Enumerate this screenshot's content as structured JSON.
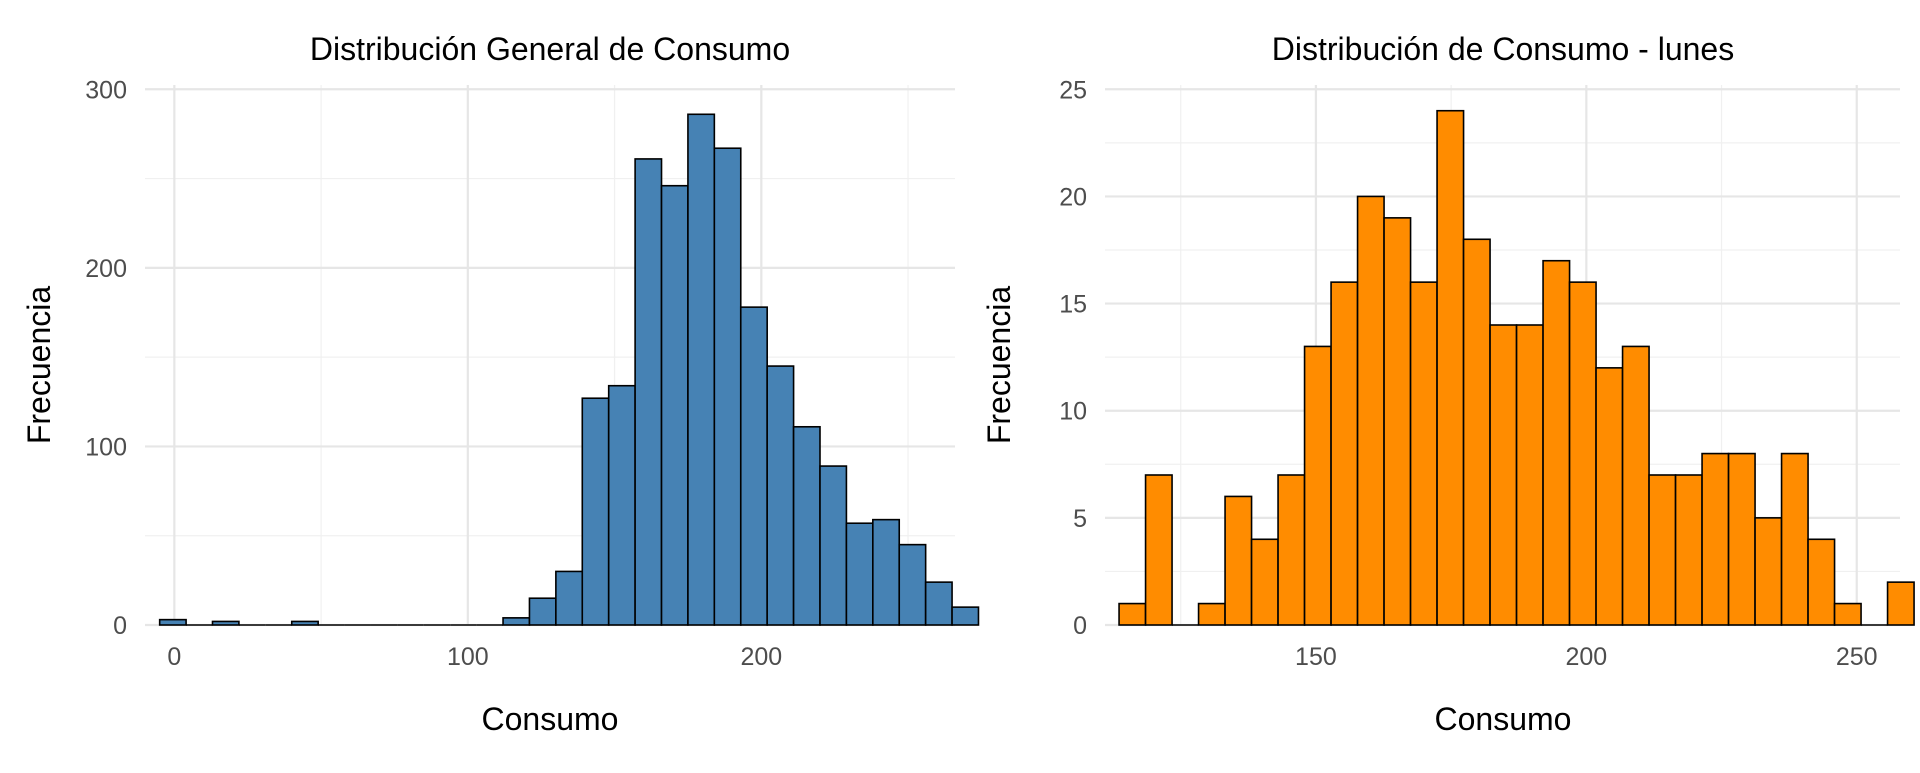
{
  "chart_data": [
    {
      "type": "histogram",
      "title": "Distribución General de Consumo",
      "xlabel": "Consumo",
      "ylabel": "Frecuencia",
      "xlim": [
        -10,
        266
      ],
      "ylim": [
        0,
        300
      ],
      "x_ticks": [
        0,
        100,
        200
      ],
      "y_ticks": [
        0,
        100,
        200,
        300
      ],
      "bin_width": 9,
      "bin_start": -5,
      "values": [
        3,
        0,
        2,
        0,
        0,
        2,
        0,
        0,
        0,
        0,
        0,
        0,
        0,
        4,
        15,
        30,
        127,
        134,
        261,
        246,
        286,
        267,
        178,
        145,
        111,
        89,
        57,
        59,
        45,
        24,
        10
      ],
      "fill_color": "#4682B4",
      "edge_color": "#000000",
      "grid": true
    },
    {
      "type": "histogram",
      "title": "Distribución de Consumo - lunes",
      "xlabel": "Consumo",
      "ylabel": "Frecuencia",
      "xlim": [
        111,
        258
      ],
      "ylim": [
        0,
        25
      ],
      "x_ticks": [
        150,
        200,
        250
      ],
      "y_ticks": [
        0,
        5,
        10,
        15,
        20,
        25
      ],
      "bin_width": 4.9,
      "bin_start": 113.6,
      "values": [
        1,
        7,
        0,
        1,
        6,
        4,
        7,
        13,
        16,
        20,
        19,
        16,
        24,
        18,
        14,
        14,
        17,
        16,
        12,
        13,
        7,
        7,
        8,
        8,
        5,
        8,
        4,
        1,
        0,
        2
      ],
      "fill_color": "#FF8C00",
      "edge_color": "#000000",
      "grid": true
    }
  ]
}
